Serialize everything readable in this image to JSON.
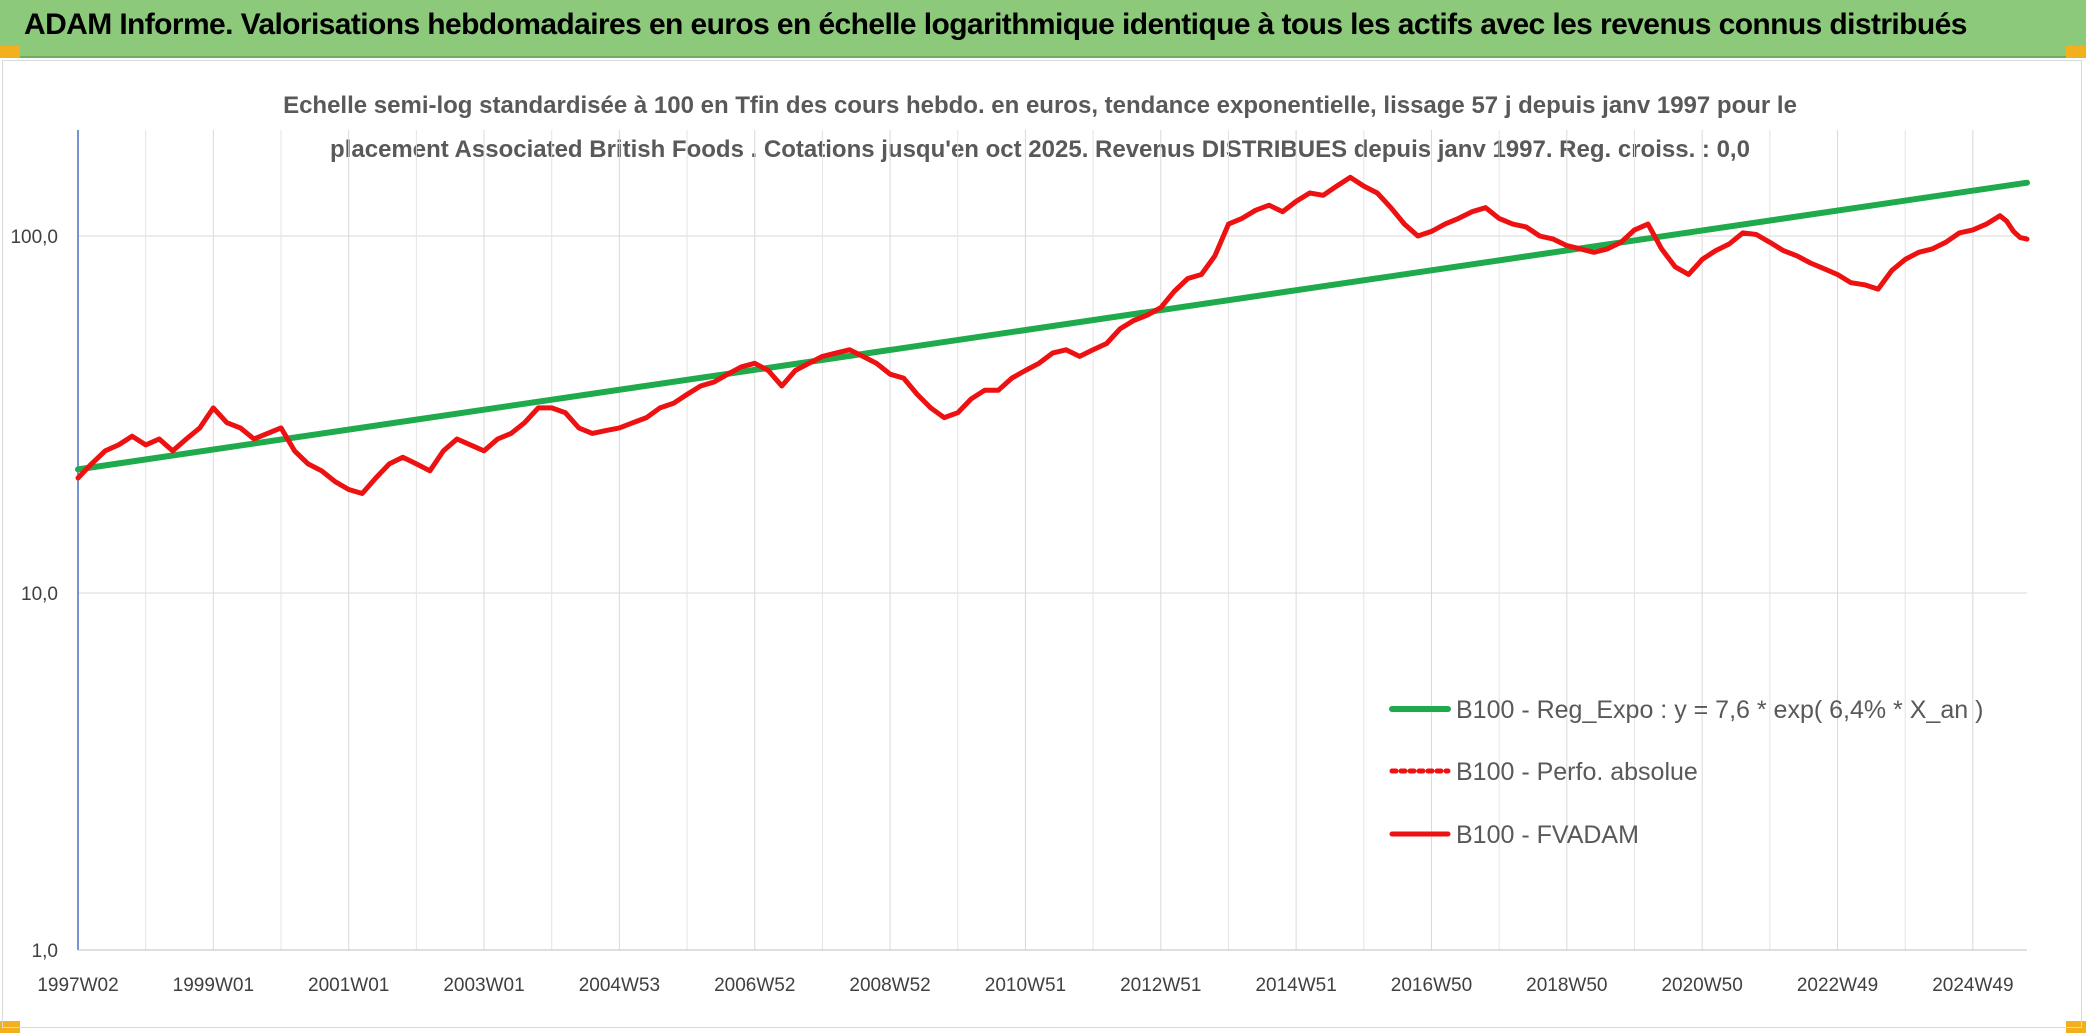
{
  "banner": {
    "title": "ADAM Informe. Valorisations hebdomadaires en euros en échelle logarithmique identique à tous les actifs avec les revenus connus distribués",
    "color": "#8cc97a"
  },
  "chart_data": {
    "type": "line",
    "title_lines": [
      "Echelle semi-log standardisée à 100 en Tfin des cours hebdo. en euros, tendance exponentielle, lissage 57 j depuis janv 1997 pour le",
      "placement Associated British Foods . Cotations jusqu'en oct 2025. Revenus DISTRIBUES depuis janv 1997. Reg. croiss. : 0,0"
    ],
    "xlabel": "",
    "ylabel": "",
    "y_scale": "log",
    "ylim": [
      1,
      180
    ],
    "xlim": [
      1997.0,
      2025.8
    ],
    "y_ticks": [
      {
        "value": 1,
        "label": "1,0"
      },
      {
        "value": 10,
        "label": "10,0"
      },
      {
        "value": 100,
        "label": "100,0"
      }
    ],
    "x_ticks": [
      {
        "value": 1997.0,
        "label": "1997W02"
      },
      {
        "value": 1999.0,
        "label": "1999W01"
      },
      {
        "value": 2001.0,
        "label": "2001W01"
      },
      {
        "value": 2003.0,
        "label": "2003W01"
      },
      {
        "value": 2005.0,
        "label": "2004W53"
      },
      {
        "value": 2007.0,
        "label": "2006W52"
      },
      {
        "value": 2009.0,
        "label": "2008W52"
      },
      {
        "value": 2011.0,
        "label": "2010W51"
      },
      {
        "value": 2013.0,
        "label": "2012W51"
      },
      {
        "value": 2015.0,
        "label": "2014W51"
      },
      {
        "value": 2017.0,
        "label": "2016W50"
      },
      {
        "value": 2019.0,
        "label": "2018W50"
      },
      {
        "value": 2021.0,
        "label": "2020W50"
      },
      {
        "value": 2023.0,
        "label": "2022W49"
      },
      {
        "value": 2025.0,
        "label": "2024W49"
      }
    ],
    "grid": true,
    "legend_position": "bottom-right",
    "series": [
      {
        "name": "B100 - Reg_Expo : y = 7,6 * exp( 6,4% *  X_an )",
        "color": "#1faa4b",
        "style": "solid",
        "points": [
          [
            1997.0,
            22.2
          ],
          [
            2025.8,
            141.0
          ]
        ]
      },
      {
        "name": "B100 - Perfo. absolue",
        "color": "#ee1111",
        "style": "dotted",
        "points": []
      },
      {
        "name": "B100 - FVADAM",
        "color": "#ee1111",
        "style": "solid",
        "points": [
          [
            1997.0,
            21
          ],
          [
            1997.2,
            23
          ],
          [
            1997.4,
            25
          ],
          [
            1997.6,
            26
          ],
          [
            1997.8,
            27.5
          ],
          [
            1998.0,
            26
          ],
          [
            1998.2,
            27
          ],
          [
            1998.4,
            25
          ],
          [
            1998.6,
            27
          ],
          [
            1998.8,
            29
          ],
          [
            1999.0,
            33
          ],
          [
            1999.2,
            30
          ],
          [
            1999.4,
            29
          ],
          [
            1999.6,
            27
          ],
          [
            1999.8,
            28
          ],
          [
            2000.0,
            29
          ],
          [
            2000.2,
            25
          ],
          [
            2000.4,
            23
          ],
          [
            2000.6,
            22
          ],
          [
            2000.8,
            20.5
          ],
          [
            2001.0,
            19.5
          ],
          [
            2001.2,
            19
          ],
          [
            2001.4,
            21
          ],
          [
            2001.6,
            23
          ],
          [
            2001.8,
            24
          ],
          [
            2002.0,
            23
          ],
          [
            2002.2,
            22
          ],
          [
            2002.4,
            25
          ],
          [
            2002.6,
            27
          ],
          [
            2002.8,
            26
          ],
          [
            2003.0,
            25
          ],
          [
            2003.2,
            27
          ],
          [
            2003.4,
            28
          ],
          [
            2003.6,
            30
          ],
          [
            2003.8,
            33
          ],
          [
            2004.0,
            33
          ],
          [
            2004.2,
            32
          ],
          [
            2004.4,
            29
          ],
          [
            2004.6,
            28
          ],
          [
            2004.8,
            28.5
          ],
          [
            2005.0,
            29
          ],
          [
            2005.2,
            30
          ],
          [
            2005.4,
            31
          ],
          [
            2005.6,
            33
          ],
          [
            2005.8,
            34
          ],
          [
            2006.0,
            36
          ],
          [
            2006.2,
            38
          ],
          [
            2006.4,
            39
          ],
          [
            2006.6,
            41
          ],
          [
            2006.8,
            43
          ],
          [
            2007.0,
            44
          ],
          [
            2007.2,
            42
          ],
          [
            2007.4,
            38
          ],
          [
            2007.6,
            42
          ],
          [
            2007.8,
            44
          ],
          [
            2008.0,
            46
          ],
          [
            2008.2,
            47
          ],
          [
            2008.4,
            48
          ],
          [
            2008.6,
            46
          ],
          [
            2008.8,
            44
          ],
          [
            2009.0,
            41
          ],
          [
            2009.2,
            40
          ],
          [
            2009.4,
            36
          ],
          [
            2009.6,
            33
          ],
          [
            2009.8,
            31
          ],
          [
            2010.0,
            32
          ],
          [
            2010.2,
            35
          ],
          [
            2010.4,
            37
          ],
          [
            2010.6,
            37
          ],
          [
            2010.8,
            40
          ],
          [
            2011.0,
            42
          ],
          [
            2011.2,
            44
          ],
          [
            2011.4,
            47
          ],
          [
            2011.6,
            48
          ],
          [
            2011.8,
            46
          ],
          [
            2012.0,
            48
          ],
          [
            2012.2,
            50
          ],
          [
            2012.4,
            55
          ],
          [
            2012.6,
            58
          ],
          [
            2012.8,
            60
          ],
          [
            2013.0,
            63
          ],
          [
            2013.2,
            70
          ],
          [
            2013.4,
            76
          ],
          [
            2013.6,
            78
          ],
          [
            2013.8,
            88
          ],
          [
            2014.0,
            108
          ],
          [
            2014.2,
            112
          ],
          [
            2014.4,
            118
          ],
          [
            2014.6,
            122
          ],
          [
            2014.8,
            117
          ],
          [
            2015.0,
            125
          ],
          [
            2015.2,
            132
          ],
          [
            2015.4,
            130
          ],
          [
            2015.6,
            138
          ],
          [
            2015.8,
            146
          ],
          [
            2016.0,
            138
          ],
          [
            2016.2,
            132
          ],
          [
            2016.4,
            120
          ],
          [
            2016.6,
            108
          ],
          [
            2016.8,
            100
          ],
          [
            2017.0,
            103
          ],
          [
            2017.2,
            108
          ],
          [
            2017.4,
            112
          ],
          [
            2017.6,
            117
          ],
          [
            2017.8,
            120
          ],
          [
            2018.0,
            112
          ],
          [
            2018.2,
            108
          ],
          [
            2018.4,
            106
          ],
          [
            2018.6,
            100
          ],
          [
            2018.8,
            98
          ],
          [
            2019.0,
            94
          ],
          [
            2019.2,
            92
          ],
          [
            2019.4,
            90
          ],
          [
            2019.6,
            92
          ],
          [
            2019.8,
            96
          ],
          [
            2020.0,
            104
          ],
          [
            2020.2,
            108
          ],
          [
            2020.4,
            92
          ],
          [
            2020.6,
            82
          ],
          [
            2020.8,
            78
          ],
          [
            2021.0,
            86
          ],
          [
            2021.2,
            91
          ],
          [
            2021.4,
            95
          ],
          [
            2021.6,
            102
          ],
          [
            2021.8,
            101
          ],
          [
            2022.0,
            96
          ],
          [
            2022.2,
            91
          ],
          [
            2022.4,
            88
          ],
          [
            2022.6,
            84
          ],
          [
            2022.8,
            81
          ],
          [
            2023.0,
            78
          ],
          [
            2023.2,
            74
          ],
          [
            2023.4,
            73
          ],
          [
            2023.6,
            71
          ],
          [
            2023.8,
            80
          ],
          [
            2024.0,
            86
          ],
          [
            2024.2,
            90
          ],
          [
            2024.4,
            92
          ],
          [
            2024.6,
            96
          ],
          [
            2024.8,
            102
          ],
          [
            2025.0,
            104
          ],
          [
            2025.2,
            108
          ],
          [
            2025.4,
            114
          ],
          [
            2025.5,
            110
          ],
          [
            2025.6,
            103
          ],
          [
            2025.7,
            99
          ],
          [
            2025.8,
            98
          ]
        ]
      }
    ]
  }
}
